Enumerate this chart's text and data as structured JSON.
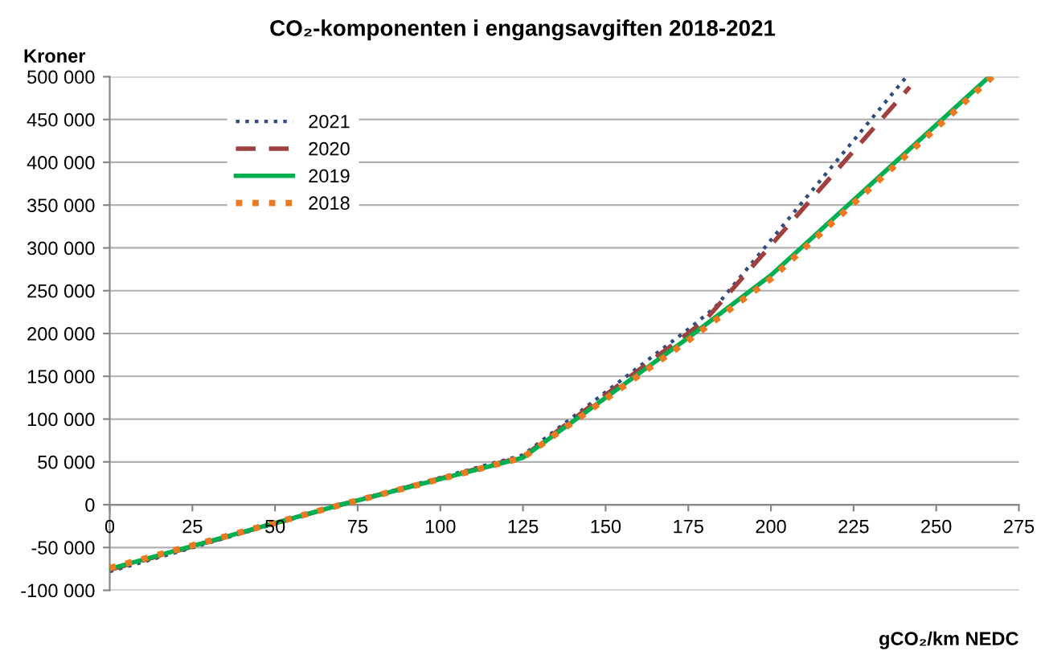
{
  "chart_data": {
    "type": "line",
    "title": "CO₂-komponenten i engangsavgiften 2018-2021",
    "xlabel": "gCO₂/km NEDC",
    "ylabel": "Kroner",
    "xlim": [
      0,
      275
    ],
    "xticks": [
      0,
      25,
      50,
      75,
      100,
      125,
      150,
      175,
      200,
      225,
      250,
      275
    ],
    "ylim": [
      -100000,
      500000
    ],
    "yticks": [
      {
        "value": -100000,
        "label": "-100 000"
      },
      {
        "value": -50000,
        "label": "-50 000"
      },
      {
        "value": 0,
        "label": "0"
      },
      {
        "value": 50000,
        "label": "50 000"
      },
      {
        "value": 100000,
        "label": "100 000"
      },
      {
        "value": 150000,
        "label": "150 000"
      },
      {
        "value": 200000,
        "label": "200 000"
      },
      {
        "value": 250000,
        "label": "250 000"
      },
      {
        "value": 300000,
        "label": "300 000"
      },
      {
        "value": 350000,
        "label": "350 000"
      },
      {
        "value": 400000,
        "label": "400 000"
      },
      {
        "value": 450000,
        "label": "450 000"
      },
      {
        "value": 500000,
        "label": "500 000"
      }
    ],
    "grid": "y",
    "legend": "top left",
    "marker": "none",
    "series": [
      {
        "name": "2021",
        "color": "#2f4d7e",
        "line_style": "dotted",
        "x": [
          0,
          70,
          125,
          175,
          183,
          241
        ],
        "values": [
          -78000,
          0,
          58000,
          205000,
          230000,
          500000
        ]
      },
      {
        "name": "2020",
        "color": "#a0403f",
        "line_style": "dashed",
        "x": [
          0,
          70,
          125,
          180,
          242
        ],
        "values": [
          -76000,
          0,
          56000,
          215000,
          488000
        ]
      },
      {
        "name": "2019",
        "color": "#00b050",
        "line_style": "solid",
        "x": [
          0,
          70,
          125,
          175,
          200,
          266
        ],
        "values": [
          -75000,
          0,
          55000,
          195000,
          268000,
          500000
        ]
      },
      {
        "name": "2018",
        "color": "#f07820",
        "line_style": "dotted",
        "x": [
          0,
          70,
          125,
          175,
          200,
          267
        ],
        "values": [
          -74000,
          0,
          55000,
          192000,
          264000,
          500000
        ]
      }
    ]
  }
}
